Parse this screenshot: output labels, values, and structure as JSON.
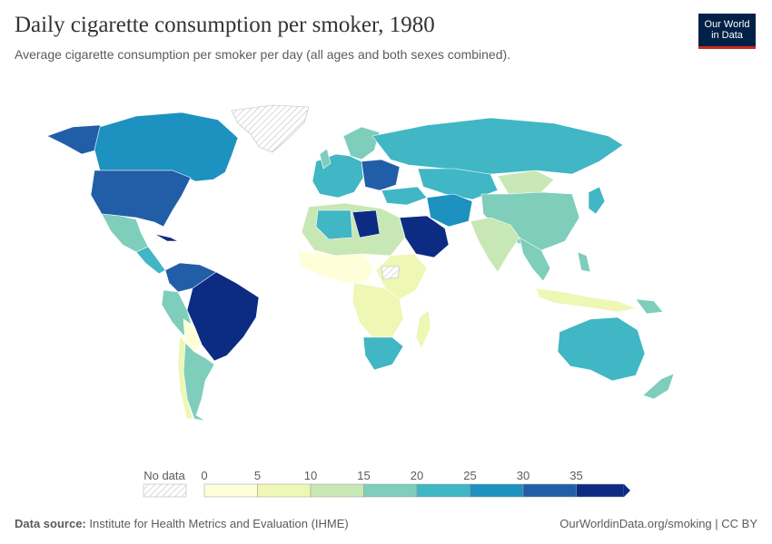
{
  "header": {
    "title": "Daily cigarette consumption per smoker, 1980",
    "subtitle": "Average cigarette consumption per smoker per day (all ages and both sexes combined)."
  },
  "logo": {
    "line1": "Our World",
    "line2": "in Data"
  },
  "legend": {
    "no_data_label": "No data",
    "ticks": [
      "0",
      "5",
      "10",
      "15",
      "20",
      "25",
      "30",
      "35"
    ],
    "bins": [
      {
        "from": 0,
        "to": 5,
        "color": "#feffd9"
      },
      {
        "from": 5,
        "to": 10,
        "color": "#eef7b3"
      },
      {
        "from": 10,
        "to": 15,
        "color": "#c7e8b4"
      },
      {
        "from": 15,
        "to": 20,
        "color": "#7fcdbb"
      },
      {
        "from": 20,
        "to": 25,
        "color": "#41b6c4"
      },
      {
        "from": 25,
        "to": 30,
        "color": "#1d91c0"
      },
      {
        "from": 30,
        "to": 35,
        "color": "#225ea8"
      },
      {
        "from": 35,
        "to": 40,
        "color": "#0c2c84"
      }
    ]
  },
  "footer": {
    "source_label": "Data source:",
    "source_text": "Institute for Health Metrics and Evaluation (IHME)",
    "link_text": "OurWorldinData.org/smoking | CC BY"
  }
}
